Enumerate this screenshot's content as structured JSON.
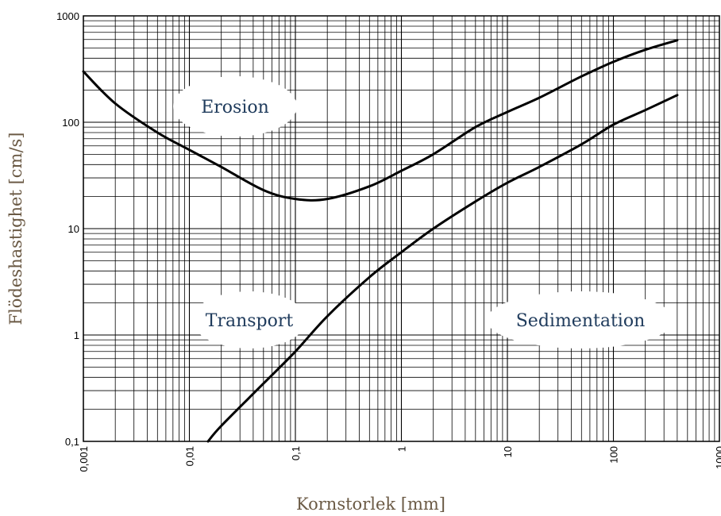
{
  "chart_data": {
    "type": "line",
    "xlabel": "Kornstorlek [mm]",
    "ylabel": "Flödeshastighet [cm/s]",
    "xscale": "log",
    "yscale": "log",
    "xlim": [
      0.001,
      1000
    ],
    "ylim": [
      0.1,
      1000
    ],
    "grid": true,
    "x_ticks": [
      "0,001",
      "0,01",
      "0,1",
      "1",
      "10",
      "100",
      "1000"
    ],
    "y_ticks": [
      "0,1",
      "1",
      "10",
      "100",
      "1000"
    ],
    "series": [
      {
        "points": [
          [
            0.001,
            300
          ],
          [
            0.002,
            150
          ],
          [
            0.005,
            80
          ],
          [
            0.01,
            55
          ],
          [
            0.02,
            38
          ],
          [
            0.05,
            23
          ],
          [
            0.1,
            19
          ],
          [
            0.2,
            19
          ],
          [
            0.5,
            25
          ],
          [
            1,
            35
          ],
          [
            2,
            50
          ],
          [
            5,
            90
          ],
          [
            10,
            125
          ],
          [
            20,
            170
          ],
          [
            50,
            270
          ],
          [
            100,
            370
          ],
          [
            200,
            480
          ],
          [
            400,
            590
          ]
        ]
      },
      {
        "points": [
          [
            0.015,
            0.1
          ],
          [
            0.02,
            0.14
          ],
          [
            0.05,
            0.35
          ],
          [
            0.1,
            0.7
          ],
          [
            0.2,
            1.5
          ],
          [
            0.5,
            3.5
          ],
          [
            1,
            6
          ],
          [
            2,
            10
          ],
          [
            5,
            18
          ],
          [
            10,
            27
          ],
          [
            20,
            38
          ],
          [
            50,
            62
          ],
          [
            100,
            95
          ],
          [
            200,
            130
          ],
          [
            400,
            180
          ]
        ]
      }
    ],
    "annotations": [
      "Erosion",
      "Transport",
      "Sedimentation"
    ]
  }
}
